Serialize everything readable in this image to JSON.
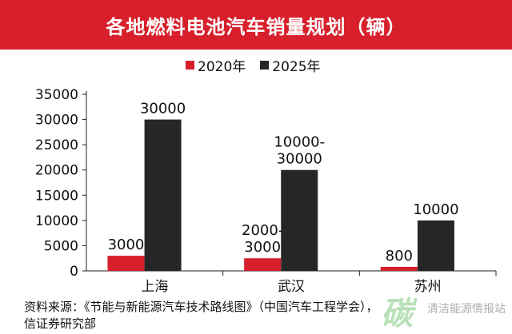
{
  "title": "各地燃料电池汽车销量规划（辆）",
  "colors": {
    "title_bg": "#d7202b",
    "s2020": "#d7202b",
    "s2025": "#262626"
  },
  "chart_data": {
    "type": "bar",
    "categories": [
      "上海",
      "武汉",
      "苏州"
    ],
    "series": [
      {
        "name": "2020年",
        "values": [
          3000,
          2500,
          800
        ],
        "labels": [
          "3000",
          "2000-\n3000",
          "800"
        ]
      },
      {
        "name": "2025年",
        "values": [
          30000,
          20000,
          10000
        ],
        "labels": [
          "30000",
          "10000-\n30000",
          "10000"
        ]
      }
    ],
    "ylim": [
      0,
      35000
    ],
    "yticks": [
      0,
      5000,
      10000,
      15000,
      20000,
      25000,
      30000,
      35000
    ],
    "legend_position": "top"
  },
  "source_line1": "资料来源：《节能与新能源汽车技术路线图》（中国汽车工程学会），",
  "source_line2": "信证券研究部",
  "watermark_text": "清洁能源情报站"
}
